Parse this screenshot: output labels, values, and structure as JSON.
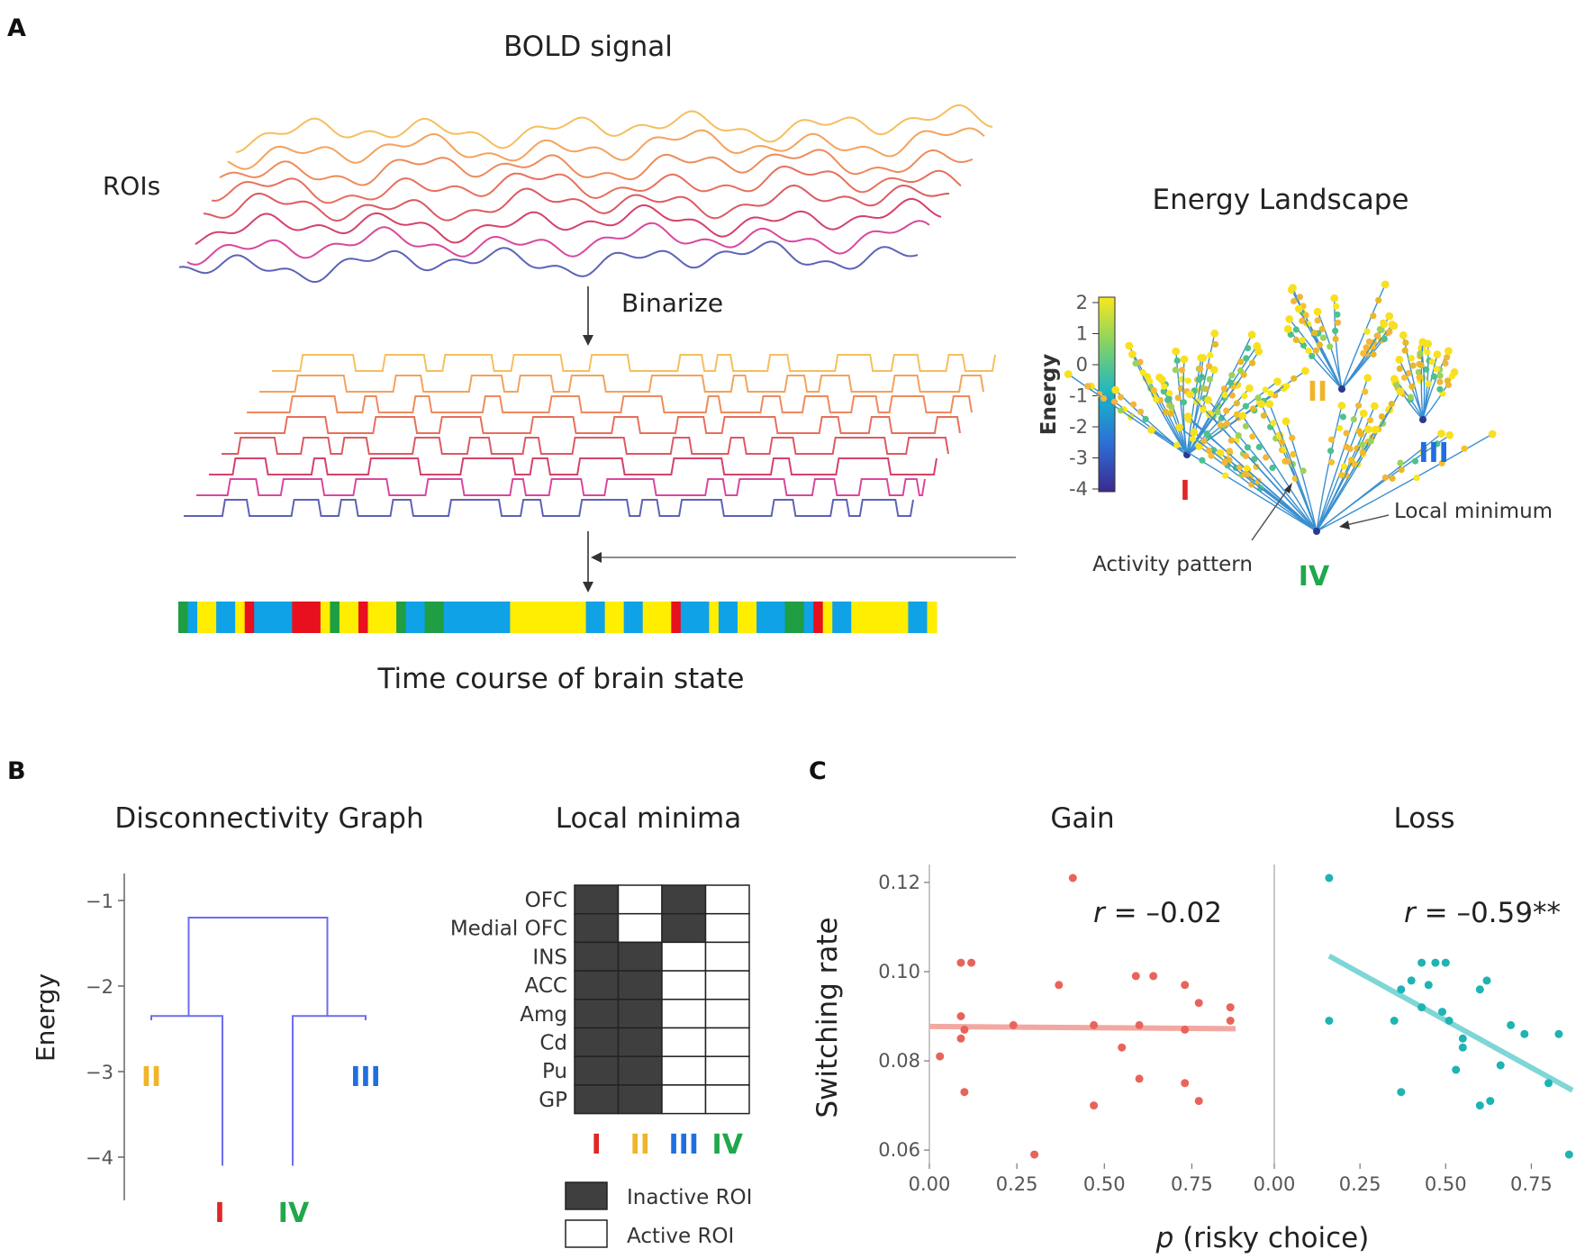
{
  "panel_a": {
    "letter": "A",
    "bold_title": "BOLD signal",
    "rois_label": "ROIs",
    "binarize_label": "Binarize",
    "timecourse_label": "Time course of brain state",
    "energy_landscape_title": "Energy Landscape",
    "colorbar_label": "Energy",
    "colorbar_ticks": [
      "2",
      "1",
      "0",
      "-1",
      "-2",
      "-3",
      "-4"
    ],
    "basins": [
      "I",
      "II",
      "III",
      "IV"
    ],
    "activity_pattern_label": "Activity pattern",
    "local_minimum_label": "Local minimum",
    "trace_colors": [
      "#f6bf5d",
      "#f4a35c",
      "#ee8b5c",
      "#e7705c",
      "#dc5a62",
      "#d3426a",
      "#d8489e",
      "#5c63b8"
    ],
    "state_sequence": [
      "IV",
      "III",
      "II",
      "II",
      "III",
      "III",
      "II",
      "I",
      "III",
      "III",
      "III",
      "III",
      "I",
      "I",
      "I",
      "II",
      "IV",
      "II",
      "II",
      "I",
      "II",
      "II",
      "II",
      "IV",
      "III",
      "III",
      "IV",
      "IV",
      "III",
      "III",
      "III",
      "III",
      "III",
      "III",
      "III",
      "II",
      "II",
      "II",
      "II",
      "II",
      "II",
      "II",
      "II",
      "III",
      "III",
      "II",
      "II",
      "III",
      "III",
      "II",
      "II",
      "II",
      "I",
      "III",
      "III",
      "III",
      "II",
      "III",
      "III",
      "II",
      "II",
      "III",
      "III",
      "III",
      "IV",
      "IV",
      "III",
      "I",
      "II",
      "III",
      "III",
      "II",
      "II",
      "II",
      "II",
      "II",
      "II",
      "III",
      "III",
      "II"
    ]
  },
  "panel_b": {
    "letter": "B",
    "dendrogram_title": "Disconnectivity Graph",
    "minima_title": "Local minima",
    "ylabel": "Energy",
    "yticks": [
      "−1",
      "−2",
      "−3",
      "−4"
    ],
    "leaves": [
      "II",
      "I",
      "IV",
      "III"
    ],
    "leaf_energies": {
      "I": -4.1,
      "II": -2.4,
      "III": -2.4,
      "IV": -4.1
    },
    "merge_energies": {
      "I_II": -2.35,
      "III_IV": -2.35,
      "root": -1.2
    },
    "rois": [
      "OFC",
      "Medial OFC",
      "INS",
      "ACC",
      "Amg",
      "Cd",
      "Pu",
      "GP"
    ],
    "minima_columns": [
      "I",
      "II",
      "III",
      "IV"
    ],
    "matrix": [
      [
        1,
        0,
        1,
        0
      ],
      [
        1,
        0,
        1,
        0
      ],
      [
        1,
        1,
        0,
        0
      ],
      [
        1,
        1,
        0,
        0
      ],
      [
        1,
        1,
        0,
        0
      ],
      [
        1,
        1,
        0,
        0
      ],
      [
        1,
        1,
        0,
        0
      ],
      [
        1,
        1,
        0,
        0
      ]
    ],
    "legend_inactive": "Inactive ROI",
    "legend_active": "Active ROI"
  },
  "panel_c": {
    "letter": "C",
    "shared_ylabel": "Switching rate",
    "xlabel_italic": "p",
    "xlabel_rest": " (risky choice)",
    "chart_data": [
      {
        "type": "scatter",
        "title": "Gain",
        "r_label_italic": "r",
        "r_label_rest": " = –0.02",
        "xlim": [
          0.0,
          0.875
        ],
        "ylim": [
          0.057,
          0.122
        ],
        "xticks": [
          "0.00",
          "0.25",
          "0.50",
          "0.75"
        ],
        "yticks": [
          "0.12",
          "0.10",
          "0.08",
          "0.06"
        ],
        "ytick_values": [
          0.12,
          0.1,
          0.08,
          0.06
        ],
        "xtick_values": [
          0.0,
          0.25,
          0.5,
          0.75
        ],
        "color": "#e8645a",
        "line_color": "#f2a8a2",
        "fit": {
          "x": [
            0.0,
            0.875
          ],
          "y": [
            0.0877,
            0.0872
          ]
        },
        "points": [
          [
            0.03,
            0.081
          ],
          [
            0.09,
            0.102
          ],
          [
            0.12,
            0.102
          ],
          [
            0.09,
            0.09
          ],
          [
            0.1,
            0.087
          ],
          [
            0.09,
            0.085
          ],
          [
            0.1,
            0.073
          ],
          [
            0.24,
            0.088
          ],
          [
            0.3,
            0.059
          ],
          [
            0.37,
            0.097
          ],
          [
            0.41,
            0.121
          ],
          [
            0.47,
            0.088
          ],
          [
            0.47,
            0.07
          ],
          [
            0.55,
            0.083
          ],
          [
            0.59,
            0.099
          ],
          [
            0.6,
            0.088
          ],
          [
            0.64,
            0.099
          ],
          [
            0.6,
            0.076
          ],
          [
            0.73,
            0.097
          ],
          [
            0.73,
            0.087
          ],
          [
            0.77,
            0.093
          ],
          [
            0.73,
            0.075
          ],
          [
            0.77,
            0.071
          ],
          [
            0.86,
            0.092
          ],
          [
            0.86,
            0.089
          ]
        ]
      },
      {
        "type": "scatter",
        "title": "Loss",
        "r_label_italic": "r",
        "r_label_rest": " = –0.59**",
        "xlim": [
          0.0,
          0.875
        ],
        "ylim": [
          0.057,
          0.122
        ],
        "xticks": [
          "0.00",
          "0.25",
          "0.50",
          "0.75"
        ],
        "yticks": [
          "0.12",
          "0.10",
          "0.08",
          "0.06"
        ],
        "ytick_values": [
          0.12,
          0.1,
          0.08,
          0.06
        ],
        "xtick_values": [
          0.0,
          0.25,
          0.5,
          0.75
        ],
        "color": "#1fb3b3",
        "line_color": "#7fd6d6",
        "fit": {
          "x": [
            0.16,
            0.87
          ],
          "y": [
            0.1035,
            0.0734
          ]
        },
        "points": [
          [
            0.16,
            0.121
          ],
          [
            0.16,
            0.089
          ],
          [
            0.35,
            0.089
          ],
          [
            0.37,
            0.096
          ],
          [
            0.4,
            0.098
          ],
          [
            0.37,
            0.073
          ],
          [
            0.43,
            0.102
          ],
          [
            0.47,
            0.102
          ],
          [
            0.43,
            0.092
          ],
          [
            0.45,
            0.097
          ],
          [
            0.49,
            0.091
          ],
          [
            0.5,
            0.102
          ],
          [
            0.51,
            0.089
          ],
          [
            0.53,
            0.078
          ],
          [
            0.55,
            0.085
          ],
          [
            0.55,
            0.083
          ],
          [
            0.6,
            0.096
          ],
          [
            0.62,
            0.098
          ],
          [
            0.6,
            0.07
          ],
          [
            0.63,
            0.071
          ],
          [
            0.66,
            0.079
          ],
          [
            0.69,
            0.088
          ],
          [
            0.73,
            0.086
          ],
          [
            0.8,
            0.075
          ],
          [
            0.83,
            0.086
          ],
          [
            0.86,
            0.059
          ]
        ]
      }
    ]
  }
}
